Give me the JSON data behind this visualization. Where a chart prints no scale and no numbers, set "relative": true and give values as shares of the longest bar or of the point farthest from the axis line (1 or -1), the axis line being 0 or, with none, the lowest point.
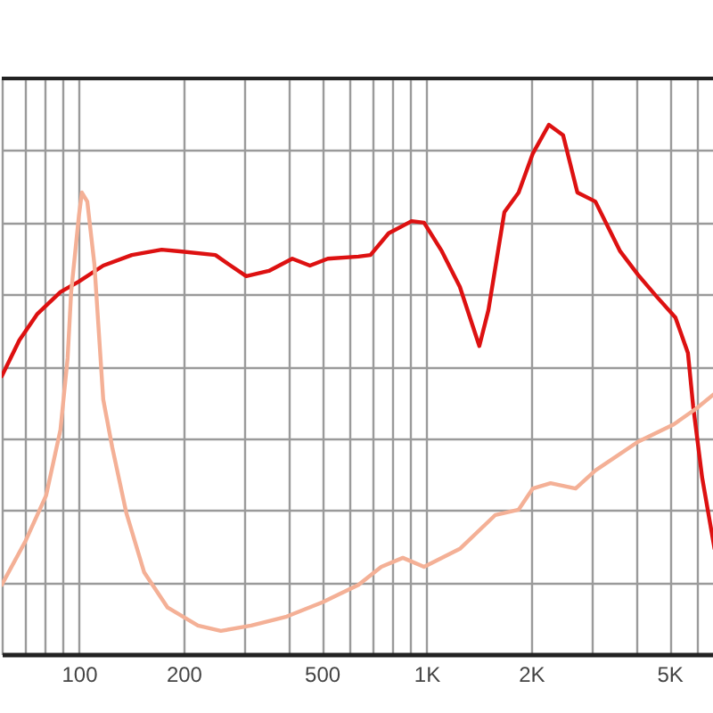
{
  "chart_data": {
    "type": "line",
    "relative": true,
    "log": "x",
    "grid": true,
    "tick_labels": "x",
    "xlim": [
      60,
      6750
    ],
    "xticks": [
      {
        "value": 60,
        "label": null
      },
      {
        "value": 70,
        "label": null
      },
      {
        "value": 80,
        "label": null
      },
      {
        "value": 90,
        "label": null
      },
      100,
      200,
      {
        "value": 300,
        "label": null
      },
      {
        "value": 400,
        "label": null
      },
      500,
      {
        "value": 600,
        "label": null
      },
      {
        "value": 700,
        "label": null
      },
      {
        "value": 800,
        "label": null
      },
      {
        "value": 900,
        "label": null
      },
      {
        "value": 1000,
        "label": "1K"
      },
      {
        "value": 2000,
        "label": "2K"
      },
      {
        "value": 3000,
        "label": null
      },
      {
        "value": 4000,
        "label": null
      },
      {
        "value": 5000,
        "label": "5K"
      },
      {
        "value": 6000,
        "label": null
      }
    ],
    "series": [
      {
        "color": "#dd1111",
        "x": [
          60,
          67.4,
          76,
          88.5,
          100,
          117.5,
          142,
          173,
          195,
          247,
          269,
          303,
          352,
          411,
          462,
          520,
          637,
          690,
          778,
          906,
          984,
          1107,
          1247,
          1419,
          1507,
          1675,
          1841,
          2023,
          2249,
          2472,
          2717,
          3060,
          3606,
          4056,
          4571,
          5200,
          5650,
          5850,
          6210,
          6740
        ],
        "values": [
          0.525,
          0.593,
          0.643,
          0.684,
          0.704,
          0.734,
          0.754,
          0.764,
          0.761,
          0.754,
          0.737,
          0.714,
          0.724,
          0.747,
          0.734,
          0.747,
          0.751,
          0.754,
          0.795,
          0.818,
          0.815,
          0.761,
          0.694,
          0.582,
          0.65,
          0.835,
          0.872,
          0.946,
          1.0,
          0.98,
          0.872,
          0.855,
          0.761,
          0.717,
          0.677,
          0.636,
          0.569,
          0.468,
          0.333,
          0.199
        ]
      },
      {
        "color": "#f4b096",
        "x": [
          60,
          70,
          80.5,
          88.5,
          92.8,
          95,
          100,
          102,
          105.7,
          110.8,
          117.5,
          124.7,
          137,
          154,
          180,
          220,
          256,
          313,
          396,
          502,
          637,
          741,
          855,
          984,
          1247,
          1578,
          1841,
          2023,
          2275,
          2685,
          3060,
          4056,
          5140,
          6000,
          6740
        ],
        "values": [
          0.131,
          0.212,
          0.3,
          0.424,
          0.559,
          0.684,
          0.828,
          0.872,
          0.855,
          0.737,
          0.481,
          0.391,
          0.266,
          0.155,
          0.088,
          0.054,
          0.044,
          0.054,
          0.071,
          0.098,
          0.131,
          0.165,
          0.182,
          0.165,
          0.199,
          0.263,
          0.273,
          0.313,
          0.323,
          0.313,
          0.347,
          0.401,
          0.434,
          0.465,
          0.492
        ]
      }
    ]
  }
}
